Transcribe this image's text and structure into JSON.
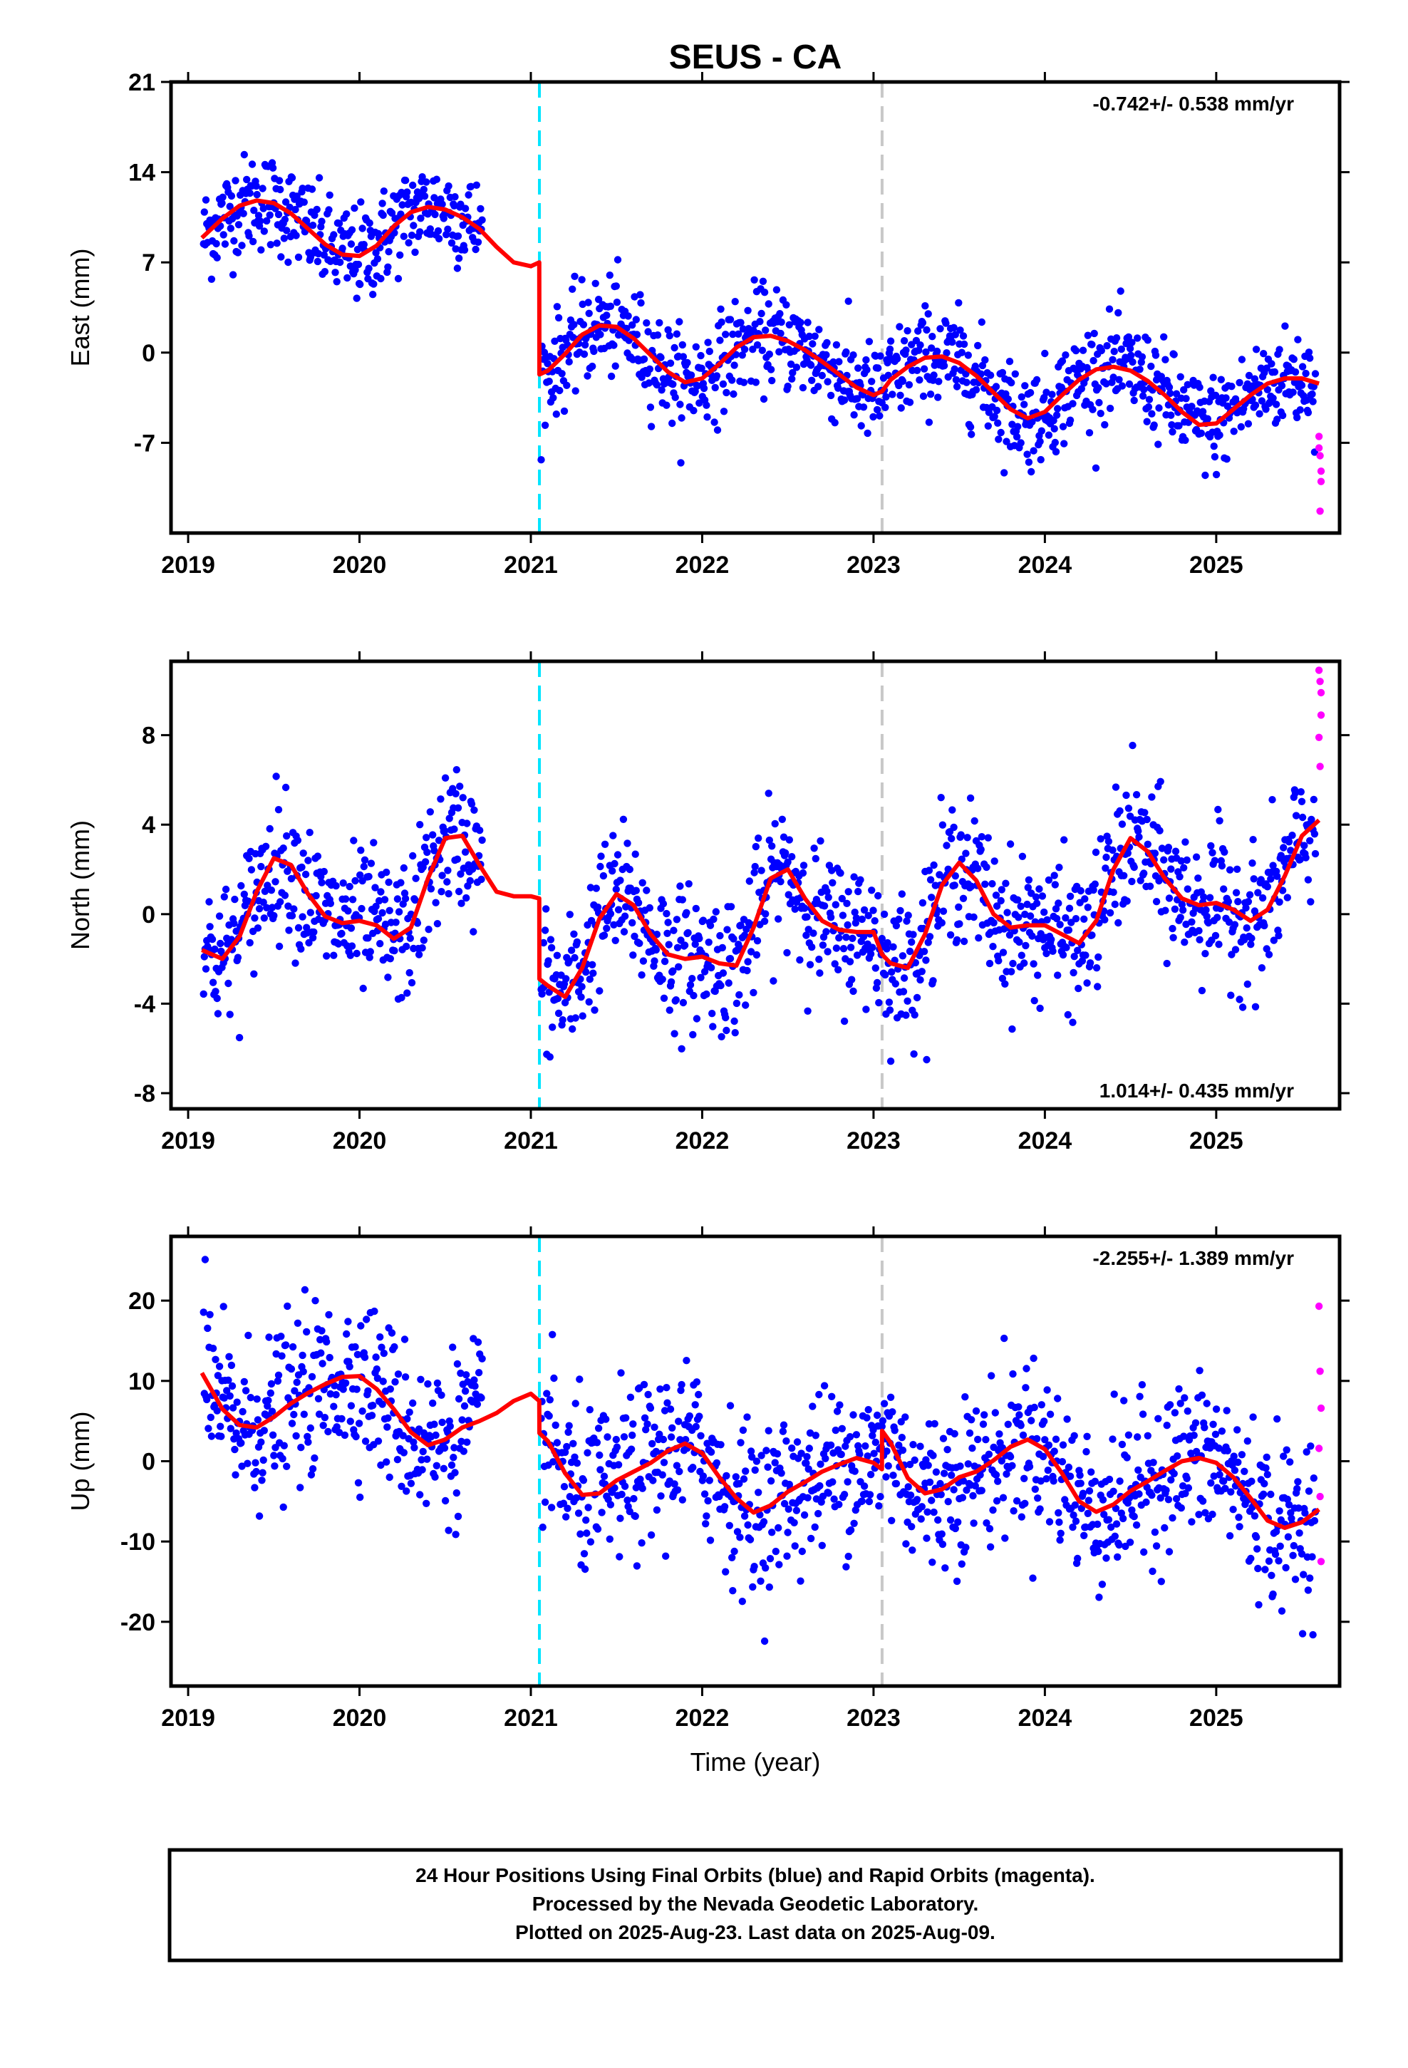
{
  "chart_data": {
    "type": "scatter",
    "title": "SEUS - CA",
    "xlabel": "Time (year)",
    "xlim": [
      2018.9,
      2025.72
    ],
    "xticks": [
      2019,
      2020,
      2021,
      2022,
      2023,
      2024,
      2025
    ],
    "xtick_labels": [
      "2019",
      "2020",
      "2021",
      "2022",
      "2023",
      "2024",
      "2025"
    ],
    "colors": {
      "final_orbits": "#0000ff",
      "rapid_orbits": "#ff00ff",
      "model_fit": "#ff0000",
      "equipment_change": "#00e5ff",
      "other_offset": "#c8c8c8"
    },
    "vertical_lines": [
      {
        "x": 2021.05,
        "style": "dashed",
        "color": "#00e5ff"
      },
      {
        "x": 2023.05,
        "style": "dashed",
        "color": "#c8c8c8"
      }
    ],
    "panels": [
      {
        "name": "East",
        "ylabel": "East (mm)",
        "ylim": [
          -14,
          21
        ],
        "yticks": [
          -7,
          0,
          7,
          14,
          21
        ],
        "ytick_labels": [
          "-7",
          "0",
          "7",
          "14",
          "21"
        ],
        "rate_text": "-0.742+/- 0.538 mm/yr",
        "rate_position": "top-right",
        "model_fit": {
          "x": [
            2019.08,
            2019.2,
            2019.3,
            2019.4,
            2019.5,
            2019.6,
            2019.7,
            2019.8,
            2019.9,
            2020.0,
            2020.1,
            2020.2,
            2020.3,
            2020.4,
            2020.5,
            2020.6,
            2020.7,
            2020.8,
            2020.9,
            2021.0,
            2021.049,
            2021.05,
            2021.1,
            2021.2,
            2021.3,
            2021.4,
            2021.5,
            2021.6,
            2021.7,
            2021.8,
            2021.9,
            2022.0,
            2022.1,
            2022.2,
            2022.3,
            2022.4,
            2022.5,
            2022.6,
            2022.7,
            2022.8,
            2022.9,
            2023.0,
            2023.05,
            2023.1,
            2023.2,
            2023.3,
            2023.4,
            2023.5,
            2023.6,
            2023.7,
            2023.8,
            2023.9,
            2024.0,
            2024.1,
            2024.2,
            2024.3,
            2024.4,
            2024.5,
            2024.6,
            2024.7,
            2024.8,
            2024.9,
            2025.0,
            2025.1,
            2025.2,
            2025.3,
            2025.4,
            2025.5,
            2025.6
          ],
          "y": [
            8.9,
            10.4,
            11.4,
            11.8,
            11.6,
            10.8,
            9.6,
            8.4,
            7.6,
            7.5,
            8.3,
            9.8,
            10.9,
            11.3,
            11.1,
            10.5,
            9.6,
            8.2,
            7.0,
            6.7,
            7.0,
            -1.7,
            -1.4,
            -0.1,
            1.4,
            2.1,
            2.0,
            1.1,
            -0.2,
            -1.5,
            -2.3,
            -2.0,
            -0.9,
            0.4,
            1.2,
            1.3,
            0.9,
            0.2,
            -0.7,
            -1.7,
            -2.7,
            -3.3,
            -3.0,
            -2.1,
            -1.1,
            -0.4,
            -0.3,
            -0.8,
            -1.8,
            -3.1,
            -4.4,
            -5.1,
            -4.6,
            -3.3,
            -2.1,
            -1.3,
            -1.1,
            -1.4,
            -2.2,
            -3.3,
            -4.6,
            -5.6,
            -5.5,
            -4.4,
            -3.3,
            -2.4,
            -2.0,
            -2.0,
            -2.4
          ]
        }
      },
      {
        "name": "North",
        "ylabel": "North (mm)",
        "ylim": [
          -8.7,
          11.3
        ],
        "yticks": [
          -8,
          -4,
          0,
          4,
          8
        ],
        "ytick_labels": [
          "-8",
          "-4",
          "0",
          "4",
          "8"
        ],
        "rate_text": "1.014+/- 0.435 mm/yr",
        "rate_position": "bottom-right",
        "model_fit": {
          "x": [
            2019.08,
            2019.2,
            2019.3,
            2019.4,
            2019.5,
            2019.6,
            2019.7,
            2019.8,
            2019.9,
            2020.0,
            2020.1,
            2020.2,
            2020.3,
            2020.4,
            2020.5,
            2020.6,
            2020.7,
            2020.8,
            2020.9,
            2021.0,
            2021.049,
            2021.05,
            2021.1,
            2021.2,
            2021.3,
            2021.4,
            2021.5,
            2021.6,
            2021.7,
            2021.8,
            2021.9,
            2022.0,
            2022.1,
            2022.2,
            2022.3,
            2022.4,
            2022.5,
            2022.6,
            2022.7,
            2022.8,
            2022.9,
            2023.0,
            2023.05,
            2023.1,
            2023.2,
            2023.3,
            2023.4,
            2023.5,
            2023.6,
            2023.7,
            2023.8,
            2023.9,
            2024.0,
            2024.1,
            2024.2,
            2024.3,
            2024.4,
            2024.5,
            2024.6,
            2024.7,
            2024.8,
            2024.9,
            2025.0,
            2025.1,
            2025.2,
            2025.3,
            2025.4,
            2025.5,
            2025.6
          ],
          "y": [
            -1.6,
            -2.0,
            -1.0,
            1.0,
            2.5,
            2.2,
            0.9,
            -0.1,
            -0.4,
            -0.3,
            -0.5,
            -1.1,
            -0.6,
            1.6,
            3.4,
            3.5,
            2.2,
            1.0,
            0.8,
            0.8,
            0.7,
            -2.9,
            -3.2,
            -3.7,
            -2.4,
            -0.2,
            0.9,
            0.4,
            -0.9,
            -1.8,
            -2.0,
            -1.9,
            -2.2,
            -2.3,
            -0.6,
            1.6,
            2.0,
            0.7,
            -0.3,
            -0.7,
            -0.8,
            -0.8,
            -1.8,
            -2.2,
            -2.4,
            -0.9,
            1.3,
            2.3,
            1.5,
            0.0,
            -0.6,
            -0.5,
            -0.5,
            -0.9,
            -1.3,
            -0.3,
            2.0,
            3.4,
            2.8,
            1.6,
            0.7,
            0.4,
            0.5,
            0.2,
            -0.3,
            0.2,
            1.7,
            3.5,
            4.2
          ]
        }
      },
      {
        "name": "Up",
        "ylabel": "Up (mm)",
        "ylim": [
          -28,
          28
        ],
        "yticks": [
          -20,
          -10,
          0,
          10,
          20
        ],
        "ytick_labels": [
          "-20",
          "-10",
          "0",
          "10",
          "20"
        ],
        "rate_text": "-2.255+/- 1.389 mm/yr",
        "rate_position": "top-right",
        "model_fit": {
          "x": [
            2019.08,
            2019.2,
            2019.3,
            2019.4,
            2019.5,
            2019.6,
            2019.7,
            2019.8,
            2019.9,
            2020.0,
            2020.1,
            2020.2,
            2020.3,
            2020.4,
            2020.5,
            2020.6,
            2020.7,
            2020.8,
            2020.9,
            2021.0,
            2021.049,
            2021.05,
            2021.1,
            2021.2,
            2021.3,
            2021.4,
            2021.5,
            2021.6,
            2021.7,
            2021.8,
            2021.9,
            2022.0,
            2022.1,
            2022.2,
            2022.3,
            2022.4,
            2022.5,
            2022.6,
            2022.7,
            2022.8,
            2022.9,
            2023.0,
            2023.049,
            2023.05,
            2023.1,
            2023.2,
            2023.3,
            2023.4,
            2023.5,
            2023.6,
            2023.7,
            2023.8,
            2023.9,
            2024.0,
            2024.1,
            2024.2,
            2024.3,
            2024.4,
            2024.5,
            2024.6,
            2024.7,
            2024.8,
            2024.9,
            2025.0,
            2025.1,
            2025.2,
            2025.3,
            2025.4,
            2025.5,
            2025.6
          ],
          "y": [
            11.0,
            6.5,
            4.5,
            4.2,
            5.5,
            7.2,
            8.5,
            9.6,
            10.5,
            10.6,
            9.0,
            6.5,
            3.6,
            2.0,
            2.7,
            4.2,
            5.0,
            6.0,
            7.5,
            8.4,
            7.5,
            3.5,
            2.5,
            -1.5,
            -4.2,
            -4.0,
            -2.4,
            -1.3,
            -0.2,
            1.3,
            2.2,
            1.0,
            -2.0,
            -4.6,
            -6.4,
            -5.5,
            -3.8,
            -2.6,
            -1.3,
            -0.4,
            0.4,
            -0.2,
            -1.0,
            3.8,
            2.3,
            -2.1,
            -4.0,
            -3.5,
            -2.0,
            -1.3,
            0.1,
            1.8,
            2.7,
            1.5,
            -1.5,
            -5.0,
            -6.3,
            -5.4,
            -3.7,
            -2.5,
            -1.2,
            0.0,
            0.4,
            -0.2,
            -2.0,
            -4.6,
            -7.4,
            -8.3,
            -7.6,
            -6.0
          ]
        }
      }
    ]
  },
  "footer": {
    "line1": "24 Hour Positions Using Final Orbits (blue) and Rapid Orbits (magenta).",
    "line2": "Processed by the Nevada Geodetic Laboratory.",
    "line3": "Plotted on 2025-Aug-23. Last data on 2025-Aug-09."
  }
}
